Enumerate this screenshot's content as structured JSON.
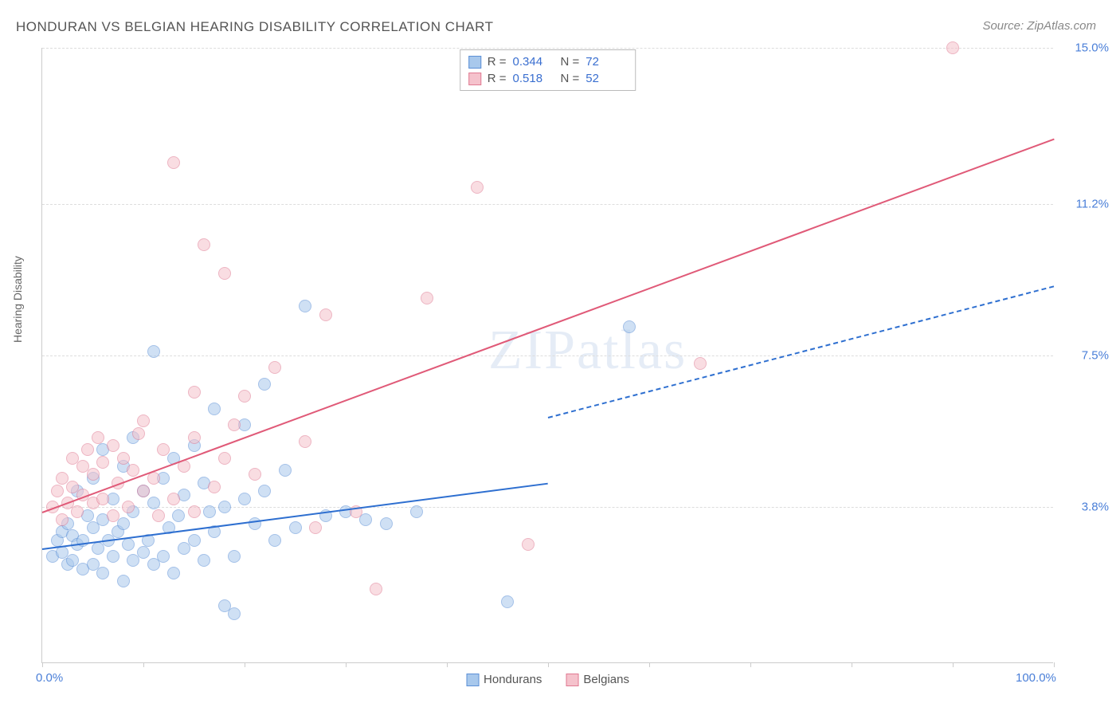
{
  "title": "HONDURAN VS BELGIAN HEARING DISABILITY CORRELATION CHART",
  "source": "Source: ZipAtlas.com",
  "watermark": "ZIPatlas",
  "y_axis_label": "Hearing Disability",
  "chart": {
    "type": "scatter",
    "xlim": [
      0,
      100
    ],
    "ylim": [
      0,
      15
    ],
    "x_ticks": [
      0,
      10,
      20,
      30,
      40,
      50,
      60,
      70,
      80,
      90,
      100
    ],
    "x_tick_labels": {
      "0": "0.0%",
      "100": "100.0%"
    },
    "y_gridlines": [
      3.8,
      7.5,
      11.2,
      15.0
    ],
    "y_tick_labels": [
      "3.8%",
      "7.5%",
      "11.2%",
      "15.0%"
    ],
    "background_color": "#ffffff",
    "grid_color": "#dddddd",
    "axis_color": "#cccccc",
    "point_radius": 8,
    "point_opacity": 0.55,
    "series": [
      {
        "name": "Hondurans",
        "color_fill": "#a8c8ec",
        "color_stroke": "#5b8fd6",
        "R": "0.344",
        "N": "72",
        "trend": {
          "x1": 0,
          "y1": 2.8,
          "x2": 50,
          "y2": 6.0,
          "solid_to_x": 50,
          "dash_to_x": 100,
          "dash_y2": 9.2,
          "color": "#2e6fd0",
          "width": 2
        },
        "points": [
          [
            1,
            2.6
          ],
          [
            1.5,
            3.0
          ],
          [
            2,
            2.7
          ],
          [
            2,
            3.2
          ],
          [
            2.5,
            2.4
          ],
          [
            2.5,
            3.4
          ],
          [
            3,
            2.5
          ],
          [
            3,
            3.1
          ],
          [
            3.5,
            2.9
          ],
          [
            3.5,
            4.2
          ],
          [
            4,
            2.3
          ],
          [
            4,
            3.0
          ],
          [
            4.5,
            3.6
          ],
          [
            5,
            2.4
          ],
          [
            5,
            3.3
          ],
          [
            5,
            4.5
          ],
          [
            5.5,
            2.8
          ],
          [
            6,
            2.2
          ],
          [
            6,
            3.5
          ],
          [
            6,
            5.2
          ],
          [
            6.5,
            3.0
          ],
          [
            7,
            2.6
          ],
          [
            7,
            4.0
          ],
          [
            7.5,
            3.2
          ],
          [
            8,
            2.0
          ],
          [
            8,
            3.4
          ],
          [
            8,
            4.8
          ],
          [
            8.5,
            2.9
          ],
          [
            9,
            2.5
          ],
          [
            9,
            3.7
          ],
          [
            9,
            5.5
          ],
          [
            10,
            2.7
          ],
          [
            10,
            4.2
          ],
          [
            10.5,
            3.0
          ],
          [
            11,
            2.4
          ],
          [
            11,
            3.9
          ],
          [
            11,
            7.6
          ],
          [
            12,
            2.6
          ],
          [
            12,
            4.5
          ],
          [
            12.5,
            3.3
          ],
          [
            13,
            2.2
          ],
          [
            13,
            5.0
          ],
          [
            13.5,
            3.6
          ],
          [
            14,
            2.8
          ],
          [
            14,
            4.1
          ],
          [
            15,
            3.0
          ],
          [
            15,
            5.3
          ],
          [
            16,
            2.5
          ],
          [
            16,
            4.4
          ],
          [
            16.5,
            3.7
          ],
          [
            17,
            3.2
          ],
          [
            17,
            6.2
          ],
          [
            18,
            1.4
          ],
          [
            18,
            3.8
          ],
          [
            19,
            2.6
          ],
          [
            19,
            1.2
          ],
          [
            20,
            4.0
          ],
          [
            20,
            5.8
          ],
          [
            21,
            3.4
          ],
          [
            22,
            4.2
          ],
          [
            22,
            6.8
          ],
          [
            23,
            3.0
          ],
          [
            24,
            4.7
          ],
          [
            25,
            3.3
          ],
          [
            26,
            8.7
          ],
          [
            28,
            3.6
          ],
          [
            30,
            3.7
          ],
          [
            32,
            3.5
          ],
          [
            34,
            3.4
          ],
          [
            37,
            3.7
          ],
          [
            46,
            1.5
          ],
          [
            58,
            8.2
          ]
        ]
      },
      {
        "name": "Belgians",
        "color_fill": "#f5c2cc",
        "color_stroke": "#e07a92",
        "R": "0.518",
        "N": "52",
        "trend": {
          "x1": 0,
          "y1": 3.7,
          "x2": 100,
          "y2": 12.8,
          "solid_to_x": 100,
          "color": "#e05a78",
          "width": 2
        },
        "points": [
          [
            1,
            3.8
          ],
          [
            1.5,
            4.2
          ],
          [
            2,
            3.5
          ],
          [
            2,
            4.5
          ],
          [
            2.5,
            3.9
          ],
          [
            3,
            4.3
          ],
          [
            3,
            5.0
          ],
          [
            3.5,
            3.7
          ],
          [
            4,
            4.1
          ],
          [
            4,
            4.8
          ],
          [
            4.5,
            5.2
          ],
          [
            5,
            3.9
          ],
          [
            5,
            4.6
          ],
          [
            5.5,
            5.5
          ],
          [
            6,
            4.0
          ],
          [
            6,
            4.9
          ],
          [
            7,
            3.6
          ],
          [
            7,
            5.3
          ],
          [
            7.5,
            4.4
          ],
          [
            8,
            5.0
          ],
          [
            8.5,
            3.8
          ],
          [
            9,
            4.7
          ],
          [
            9.5,
            5.6
          ],
          [
            10,
            4.2
          ],
          [
            10,
            5.9
          ],
          [
            11,
            4.5
          ],
          [
            11.5,
            3.6
          ],
          [
            12,
            5.2
          ],
          [
            13,
            4.0
          ],
          [
            13,
            12.2
          ],
          [
            14,
            4.8
          ],
          [
            15,
            3.7
          ],
          [
            15,
            5.5
          ],
          [
            15,
            6.6
          ],
          [
            16,
            10.2
          ],
          [
            17,
            4.3
          ],
          [
            18,
            5.0
          ],
          [
            18,
            9.5
          ],
          [
            19,
            5.8
          ],
          [
            20,
            6.5
          ],
          [
            21,
            4.6
          ],
          [
            23,
            7.2
          ],
          [
            26,
            5.4
          ],
          [
            27,
            3.3
          ],
          [
            28,
            8.5
          ],
          [
            31,
            3.7
          ],
          [
            33,
            1.8
          ],
          [
            38,
            8.9
          ],
          [
            43,
            11.6
          ],
          [
            48,
            2.9
          ],
          [
            65,
            7.3
          ],
          [
            90,
            15.0
          ]
        ]
      }
    ]
  },
  "legend_bottom": [
    {
      "label": "Hondurans",
      "fill": "#a8c8ec",
      "stroke": "#5b8fd6"
    },
    {
      "label": "Belgians",
      "fill": "#f5c2cc",
      "stroke": "#e07a92"
    }
  ]
}
